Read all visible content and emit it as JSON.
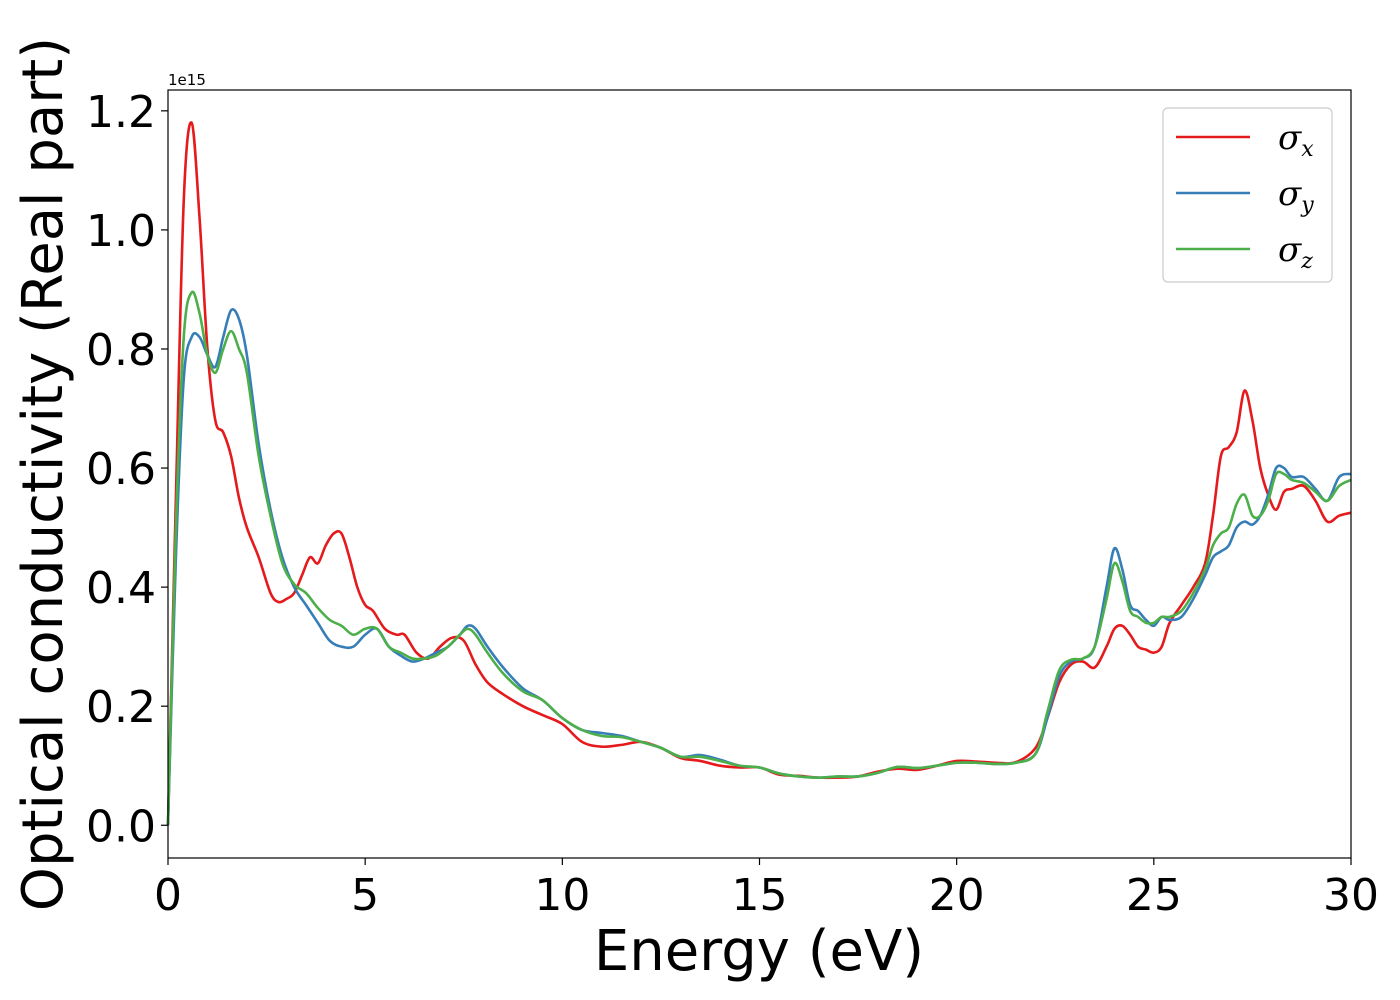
{
  "chart_data": {
    "type": "line",
    "title": "",
    "xlabel": "Energy (eV)",
    "ylabel": "Optical conductivity (Real part)",
    "y_offset_label": "1e15",
    "xlim": [
      0,
      30
    ],
    "ylim": [
      -0.055,
      1.235
    ],
    "xticks": [
      0,
      5,
      10,
      15,
      20,
      25,
      30
    ],
    "xtick_labels": [
      "0",
      "5",
      "10",
      "15",
      "20",
      "25",
      "30"
    ],
    "yticks": [
      0.0,
      0.2,
      0.4,
      0.6,
      0.8,
      1.0,
      1.2
    ],
    "ytick_labels": [
      "0.0",
      "0.2",
      "0.4",
      "0.6",
      "0.8",
      "1.0",
      "1.2"
    ],
    "grid": false,
    "legend_position": "top-right",
    "series": [
      {
        "name": "σx",
        "symbol": "σ",
        "subscript": "x",
        "color": "#e41a1c",
        "x": [
          0,
          0.2,
          0.4,
          0.6,
          0.8,
          1.0,
          1.2,
          1.4,
          1.6,
          1.8,
          2.0,
          2.3,
          2.6,
          2.8,
          3.0,
          3.2,
          3.4,
          3.6,
          3.8,
          4.0,
          4.2,
          4.4,
          4.6,
          4.8,
          5.0,
          5.2,
          5.5,
          5.8,
          6.0,
          6.3,
          6.6,
          6.9,
          7.2,
          7.5,
          7.8,
          8.1,
          8.5,
          9.0,
          9.5,
          10.0,
          10.5,
          11.0,
          11.5,
          12.0,
          12.5,
          13.0,
          13.5,
          14.0,
          14.5,
          15.0,
          15.5,
          16.0,
          16.5,
          17.0,
          17.5,
          18.0,
          18.5,
          19.0,
          19.5,
          20.0,
          20.5,
          21.0,
          21.5,
          22.0,
          22.3,
          22.6,
          22.9,
          23.2,
          23.5,
          23.8,
          24.0,
          24.2,
          24.4,
          24.6,
          24.8,
          25.0,
          25.2,
          25.4,
          25.7,
          26.0,
          26.3,
          26.5,
          26.7,
          26.9,
          27.1,
          27.3,
          27.5,
          27.7,
          27.9,
          28.1,
          28.3,
          28.5,
          28.8,
          29.1,
          29.4,
          29.7,
          30.0
        ],
        "values": [
          0.0,
          0.55,
          1.05,
          1.18,
          1.02,
          0.8,
          0.68,
          0.66,
          0.62,
          0.55,
          0.5,
          0.45,
          0.39,
          0.375,
          0.38,
          0.39,
          0.42,
          0.45,
          0.44,
          0.47,
          0.49,
          0.49,
          0.45,
          0.4,
          0.37,
          0.36,
          0.33,
          0.32,
          0.32,
          0.29,
          0.28,
          0.3,
          0.315,
          0.31,
          0.27,
          0.24,
          0.22,
          0.2,
          0.185,
          0.17,
          0.14,
          0.132,
          0.135,
          0.14,
          0.13,
          0.113,
          0.108,
          0.1,
          0.097,
          0.097,
          0.085,
          0.083,
          0.08,
          0.08,
          0.082,
          0.09,
          0.095,
          0.093,
          0.1,
          0.108,
          0.107,
          0.105,
          0.106,
          0.13,
          0.18,
          0.24,
          0.27,
          0.275,
          0.265,
          0.3,
          0.33,
          0.335,
          0.32,
          0.3,
          0.295,
          0.29,
          0.3,
          0.34,
          0.37,
          0.4,
          0.44,
          0.52,
          0.62,
          0.635,
          0.66,
          0.73,
          0.68,
          0.6,
          0.555,
          0.53,
          0.56,
          0.565,
          0.57,
          0.545,
          0.51,
          0.52,
          0.525
        ]
      },
      {
        "name": "σy",
        "symbol": "σ",
        "subscript": "y",
        "color": "#377eb8",
        "x": [
          0,
          0.2,
          0.4,
          0.6,
          0.8,
          1.0,
          1.2,
          1.4,
          1.6,
          1.8,
          2.0,
          2.3,
          2.6,
          2.9,
          3.2,
          3.5,
          3.8,
          4.1,
          4.4,
          4.7,
          5.0,
          5.3,
          5.6,
          5.9,
          6.2,
          6.5,
          6.8,
          7.1,
          7.4,
          7.6,
          7.8,
          8.1,
          8.5,
          9.0,
          9.5,
          10.0,
          10.5,
          11.0,
          11.5,
          12.0,
          12.5,
          13.0,
          13.5,
          14.0,
          14.5,
          15.0,
          15.5,
          16.0,
          16.5,
          17.0,
          17.5,
          18.0,
          18.5,
          19.0,
          19.5,
          20.0,
          20.5,
          21.0,
          21.5,
          22.0,
          22.3,
          22.6,
          22.9,
          23.2,
          23.5,
          23.8,
          24.0,
          24.2,
          24.4,
          24.6,
          24.8,
          25.0,
          25.2,
          25.4,
          25.7,
          26.0,
          26.3,
          26.5,
          26.7,
          26.9,
          27.1,
          27.3,
          27.5,
          27.7,
          27.9,
          28.1,
          28.3,
          28.5,
          28.8,
          29.1,
          29.4,
          29.7,
          30.0
        ],
        "values": [
          0.0,
          0.45,
          0.75,
          0.82,
          0.82,
          0.79,
          0.77,
          0.82,
          0.865,
          0.85,
          0.79,
          0.64,
          0.53,
          0.45,
          0.4,
          0.37,
          0.34,
          0.31,
          0.3,
          0.3,
          0.32,
          0.33,
          0.3,
          0.285,
          0.275,
          0.28,
          0.29,
          0.3,
          0.32,
          0.335,
          0.33,
          0.3,
          0.265,
          0.23,
          0.21,
          0.18,
          0.16,
          0.155,
          0.15,
          0.14,
          0.13,
          0.115,
          0.118,
          0.11,
          0.1,
          0.097,
          0.087,
          0.082,
          0.08,
          0.082,
          0.082,
          0.088,
          0.098,
          0.096,
          0.1,
          0.105,
          0.105,
          0.103,
          0.105,
          0.12,
          0.18,
          0.25,
          0.275,
          0.28,
          0.3,
          0.4,
          0.465,
          0.43,
          0.37,
          0.36,
          0.345,
          0.335,
          0.35,
          0.345,
          0.35,
          0.38,
          0.42,
          0.45,
          0.46,
          0.47,
          0.5,
          0.51,
          0.505,
          0.52,
          0.555,
          0.6,
          0.6,
          0.585,
          0.585,
          0.565,
          0.545,
          0.585,
          0.59
        ]
      },
      {
        "name": "σz",
        "symbol": "σ",
        "subscript": "z",
        "color": "#4daf4a",
        "x": [
          0,
          0.2,
          0.4,
          0.6,
          0.8,
          1.0,
          1.2,
          1.4,
          1.6,
          1.8,
          2.0,
          2.3,
          2.6,
          2.9,
          3.2,
          3.5,
          3.8,
          4.1,
          4.4,
          4.7,
          5.0,
          5.3,
          5.6,
          5.9,
          6.2,
          6.5,
          6.8,
          7.1,
          7.4,
          7.6,
          7.8,
          8.1,
          8.5,
          9.0,
          9.5,
          10.0,
          10.5,
          11.0,
          11.5,
          12.0,
          12.5,
          13.0,
          13.5,
          14.0,
          14.5,
          15.0,
          15.5,
          16.0,
          16.5,
          17.0,
          17.5,
          18.0,
          18.5,
          19.0,
          19.5,
          20.0,
          20.5,
          21.0,
          21.5,
          22.0,
          22.3,
          22.6,
          22.9,
          23.2,
          23.5,
          23.8,
          24.0,
          24.2,
          24.4,
          24.6,
          24.8,
          25.0,
          25.2,
          25.4,
          25.7,
          26.0,
          26.3,
          26.5,
          26.7,
          26.9,
          27.1,
          27.3,
          27.5,
          27.7,
          27.9,
          28.1,
          28.3,
          28.5,
          28.8,
          29.1,
          29.4,
          29.7,
          30.0
        ],
        "values": [
          0.0,
          0.5,
          0.82,
          0.895,
          0.86,
          0.79,
          0.76,
          0.8,
          0.83,
          0.8,
          0.76,
          0.62,
          0.52,
          0.44,
          0.405,
          0.39,
          0.365,
          0.345,
          0.335,
          0.32,
          0.33,
          0.33,
          0.3,
          0.29,
          0.28,
          0.28,
          0.285,
          0.3,
          0.32,
          0.33,
          0.32,
          0.29,
          0.255,
          0.225,
          0.21,
          0.18,
          0.16,
          0.15,
          0.148,
          0.14,
          0.13,
          0.115,
          0.115,
          0.108,
          0.1,
          0.097,
          0.087,
          0.082,
          0.08,
          0.082,
          0.082,
          0.088,
          0.098,
          0.096,
          0.1,
          0.105,
          0.105,
          0.103,
          0.105,
          0.12,
          0.19,
          0.26,
          0.278,
          0.28,
          0.3,
          0.38,
          0.44,
          0.41,
          0.36,
          0.35,
          0.34,
          0.34,
          0.35,
          0.35,
          0.36,
          0.39,
          0.43,
          0.47,
          0.49,
          0.5,
          0.54,
          0.555,
          0.52,
          0.52,
          0.545,
          0.59,
          0.59,
          0.58,
          0.575,
          0.56,
          0.545,
          0.57,
          0.58
        ]
      }
    ]
  }
}
